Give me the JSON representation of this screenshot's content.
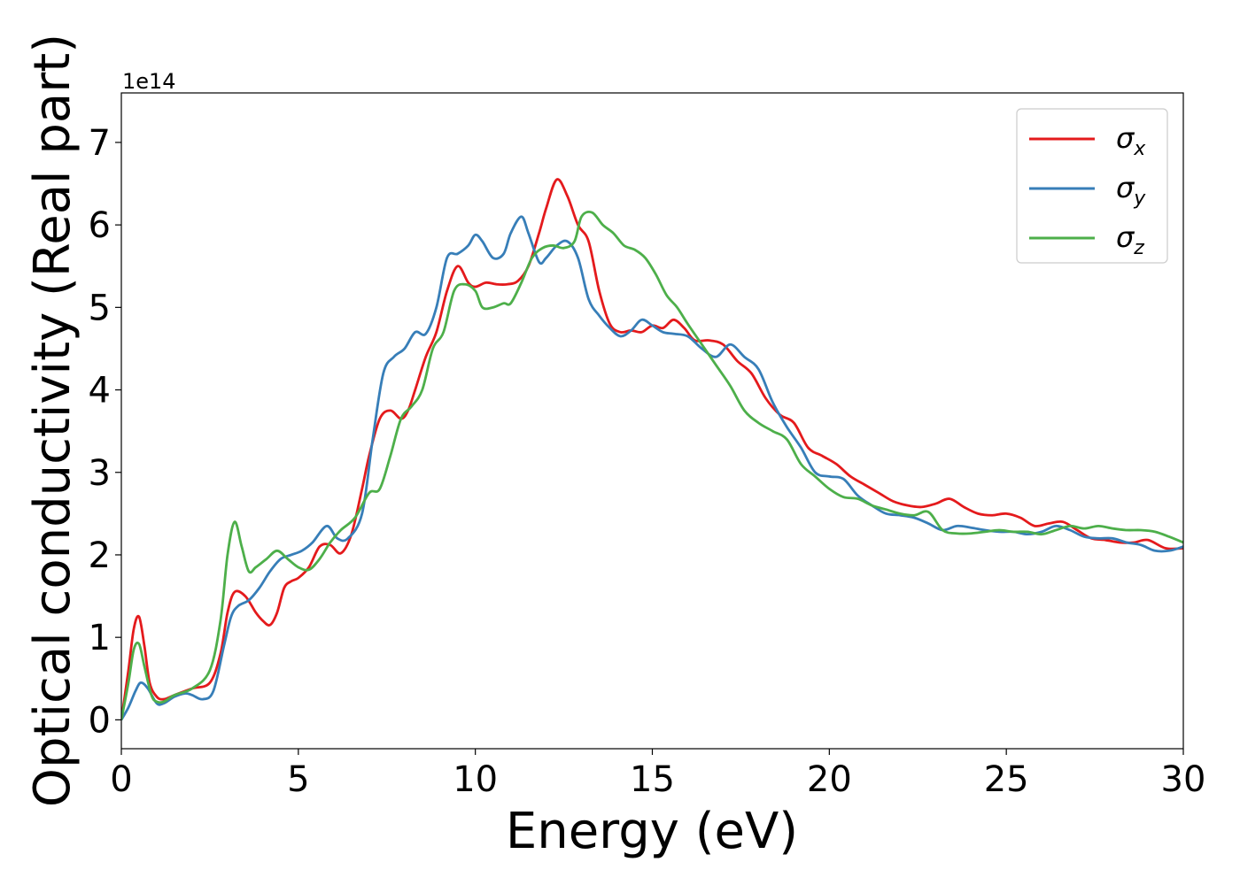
{
  "chart_data": {
    "type": "line",
    "title": "",
    "xlabel": "Energy (eV)",
    "ylabel": "Optical conductivity (Real part)",
    "y_offset_text": "1e14",
    "xlim": [
      0,
      30
    ],
    "ylim": [
      -0.35,
      7.6
    ],
    "x_ticks": [
      0,
      5,
      10,
      15,
      20,
      25,
      30
    ],
    "y_ticks": [
      0,
      1,
      2,
      3,
      4,
      5,
      6,
      7
    ],
    "grid": false,
    "legend_position": "top-right",
    "series": [
      {
        "name": "σx",
        "legend_symbol": "σ",
        "legend_subscript": "x",
        "color": "#e41a1c",
        "x": [
          0,
          0.2,
          0.35,
          0.5,
          0.65,
          0.8,
          1.0,
          1.2,
          1.5,
          2.0,
          2.5,
          2.8,
          3.0,
          3.2,
          3.5,
          3.8,
          4.0,
          4.2,
          4.4,
          4.6,
          4.8,
          5.0,
          5.3,
          5.6,
          5.9,
          6.2,
          6.5,
          6.8,
          7.0,
          7.3,
          7.6,
          7.9,
          8.1,
          8.3,
          8.6,
          8.9,
          9.2,
          9.5,
          9.8,
          10.0,
          10.3,
          10.6,
          10.9,
          11.2,
          11.5,
          11.8,
          12.0,
          12.3,
          12.6,
          12.9,
          13.2,
          13.5,
          13.8,
          14.1,
          14.4,
          14.7,
          15.0,
          15.3,
          15.6,
          15.9,
          16.2,
          16.6,
          17.0,
          17.4,
          17.8,
          18.2,
          18.6,
          19.0,
          19.4,
          19.8,
          20.2,
          20.6,
          21.0,
          21.4,
          21.8,
          22.2,
          22.6,
          23.0,
          23.4,
          23.8,
          24.2,
          24.6,
          25.0,
          25.4,
          25.8,
          26.2,
          26.6,
          27.0,
          27.4,
          27.8,
          28.2,
          28.6,
          29.0,
          29.5,
          30
        ],
        "y": [
          0,
          0.6,
          1.1,
          1.25,
          0.9,
          0.45,
          0.28,
          0.25,
          0.3,
          0.38,
          0.45,
          0.8,
          1.3,
          1.55,
          1.5,
          1.3,
          1.2,
          1.15,
          1.3,
          1.6,
          1.68,
          1.72,
          1.85,
          2.1,
          2.12,
          2.02,
          2.25,
          2.8,
          3.2,
          3.65,
          3.75,
          3.65,
          3.75,
          4.0,
          4.4,
          4.7,
          5.2,
          5.5,
          5.3,
          5.25,
          5.3,
          5.28,
          5.28,
          5.32,
          5.5,
          5.9,
          6.2,
          6.55,
          6.35,
          6.0,
          5.8,
          5.2,
          4.8,
          4.7,
          4.72,
          4.7,
          4.78,
          4.75,
          4.85,
          4.75,
          4.6,
          4.6,
          4.55,
          4.35,
          4.2,
          3.9,
          3.7,
          3.6,
          3.3,
          3.2,
          3.1,
          2.95,
          2.85,
          2.75,
          2.65,
          2.6,
          2.58,
          2.62,
          2.68,
          2.58,
          2.5,
          2.48,
          2.5,
          2.45,
          2.35,
          2.38,
          2.4,
          2.3,
          2.2,
          2.18,
          2.15,
          2.15,
          2.18,
          2.08,
          2.08
        ]
      },
      {
        "name": "σy",
        "legend_symbol": "σ",
        "legend_subscript": "y",
        "color": "#377eb8",
        "x": [
          0,
          0.2,
          0.4,
          0.55,
          0.75,
          1.0,
          1.2,
          1.5,
          1.8,
          2.0,
          2.3,
          2.6,
          2.9,
          3.1,
          3.3,
          3.6,
          3.9,
          4.2,
          4.5,
          4.8,
          5.1,
          5.4,
          5.8,
          6.1,
          6.4,
          6.8,
          7.1,
          7.4,
          7.7,
          8.0,
          8.3,
          8.6,
          8.9,
          9.2,
          9.5,
          9.8,
          10.0,
          10.2,
          10.5,
          10.8,
          11.0,
          11.3,
          11.5,
          11.8,
          12.0,
          12.3,
          12.6,
          12.9,
          13.2,
          13.5,
          13.8,
          14.1,
          14.4,
          14.7,
          15.0,
          15.3,
          15.6,
          16.0,
          16.4,
          16.8,
          17.2,
          17.6,
          18.0,
          18.4,
          18.8,
          19.2,
          19.6,
          20.0,
          20.4,
          20.8,
          21.2,
          21.6,
          22.0,
          22.4,
          22.8,
          23.2,
          23.6,
          24.0,
          24.4,
          24.8,
          25.2,
          25.6,
          26.0,
          26.4,
          26.8,
          27.2,
          27.6,
          28.0,
          28.4,
          28.8,
          29.2,
          29.6,
          30
        ],
        "y": [
          0,
          0.15,
          0.35,
          0.45,
          0.38,
          0.2,
          0.2,
          0.28,
          0.32,
          0.3,
          0.25,
          0.35,
          0.9,
          1.25,
          1.38,
          1.45,
          1.6,
          1.8,
          1.95,
          2.0,
          2.05,
          2.15,
          2.35,
          2.2,
          2.2,
          2.5,
          3.4,
          4.2,
          4.4,
          4.5,
          4.7,
          4.68,
          5.0,
          5.6,
          5.65,
          5.75,
          5.88,
          5.8,
          5.6,
          5.65,
          5.9,
          6.1,
          5.9,
          5.55,
          5.6,
          5.75,
          5.8,
          5.6,
          5.1,
          4.9,
          4.75,
          4.65,
          4.72,
          4.85,
          4.78,
          4.7,
          4.68,
          4.65,
          4.5,
          4.4,
          4.55,
          4.4,
          4.25,
          3.85,
          3.55,
          3.3,
          3.0,
          2.95,
          2.92,
          2.72,
          2.6,
          2.5,
          2.48,
          2.45,
          2.38,
          2.3,
          2.35,
          2.33,
          2.3,
          2.28,
          2.28,
          2.25,
          2.28,
          2.35,
          2.3,
          2.22,
          2.2,
          2.2,
          2.15,
          2.12,
          2.05,
          2.05,
          2.1
        ]
      },
      {
        "name": "σz",
        "legend_symbol": "σ",
        "legend_subscript": "z",
        "color": "#4daf4a",
        "x": [
          0,
          0.2,
          0.35,
          0.5,
          0.65,
          0.85,
          1.0,
          1.2,
          1.5,
          2.0,
          2.5,
          2.8,
          3.0,
          3.2,
          3.4,
          3.6,
          3.8,
          4.1,
          4.4,
          4.7,
          5.0,
          5.3,
          5.6,
          5.9,
          6.2,
          6.6,
          7.0,
          7.3,
          7.6,
          7.9,
          8.2,
          8.5,
          8.8,
          9.1,
          9.4,
          9.7,
          10.0,
          10.2,
          10.5,
          10.8,
          11.0,
          11.3,
          11.6,
          11.9,
          12.2,
          12.5,
          12.8,
          13.0,
          13.3,
          13.6,
          13.9,
          14.2,
          14.5,
          14.8,
          15.1,
          15.4,
          15.7,
          16.0,
          16.4,
          16.8,
          17.2,
          17.6,
          18.0,
          18.4,
          18.8,
          19.2,
          19.6,
          20.0,
          20.4,
          20.8,
          21.2,
          21.6,
          22.0,
          22.4,
          22.8,
          23.2,
          23.6,
          24.0,
          24.4,
          24.8,
          25.2,
          25.6,
          26.0,
          26.4,
          26.8,
          27.2,
          27.6,
          28.0,
          28.4,
          28.8,
          29.2,
          29.6,
          30
        ],
        "y": [
          0,
          0.45,
          0.85,
          0.92,
          0.65,
          0.3,
          0.22,
          0.22,
          0.3,
          0.38,
          0.6,
          1.2,
          2.0,
          2.4,
          2.1,
          1.8,
          1.85,
          1.95,
          2.05,
          1.95,
          1.85,
          1.82,
          1.95,
          2.15,
          2.3,
          2.45,
          2.75,
          2.8,
          3.2,
          3.65,
          3.8,
          4.0,
          4.5,
          4.7,
          5.2,
          5.28,
          5.2,
          5.0,
          5.0,
          5.05,
          5.05,
          5.3,
          5.6,
          5.72,
          5.75,
          5.72,
          5.8,
          6.1,
          6.15,
          6.0,
          5.9,
          5.75,
          5.7,
          5.6,
          5.4,
          5.15,
          5.0,
          4.8,
          4.55,
          4.3,
          4.05,
          3.75,
          3.6,
          3.5,
          3.4,
          3.1,
          2.95,
          2.8,
          2.7,
          2.68,
          2.6,
          2.55,
          2.5,
          2.48,
          2.52,
          2.3,
          2.26,
          2.26,
          2.28,
          2.3,
          2.28,
          2.28,
          2.25,
          2.3,
          2.35,
          2.32,
          2.35,
          2.32,
          2.3,
          2.3,
          2.28,
          2.22,
          2.15
        ]
      }
    ]
  }
}
